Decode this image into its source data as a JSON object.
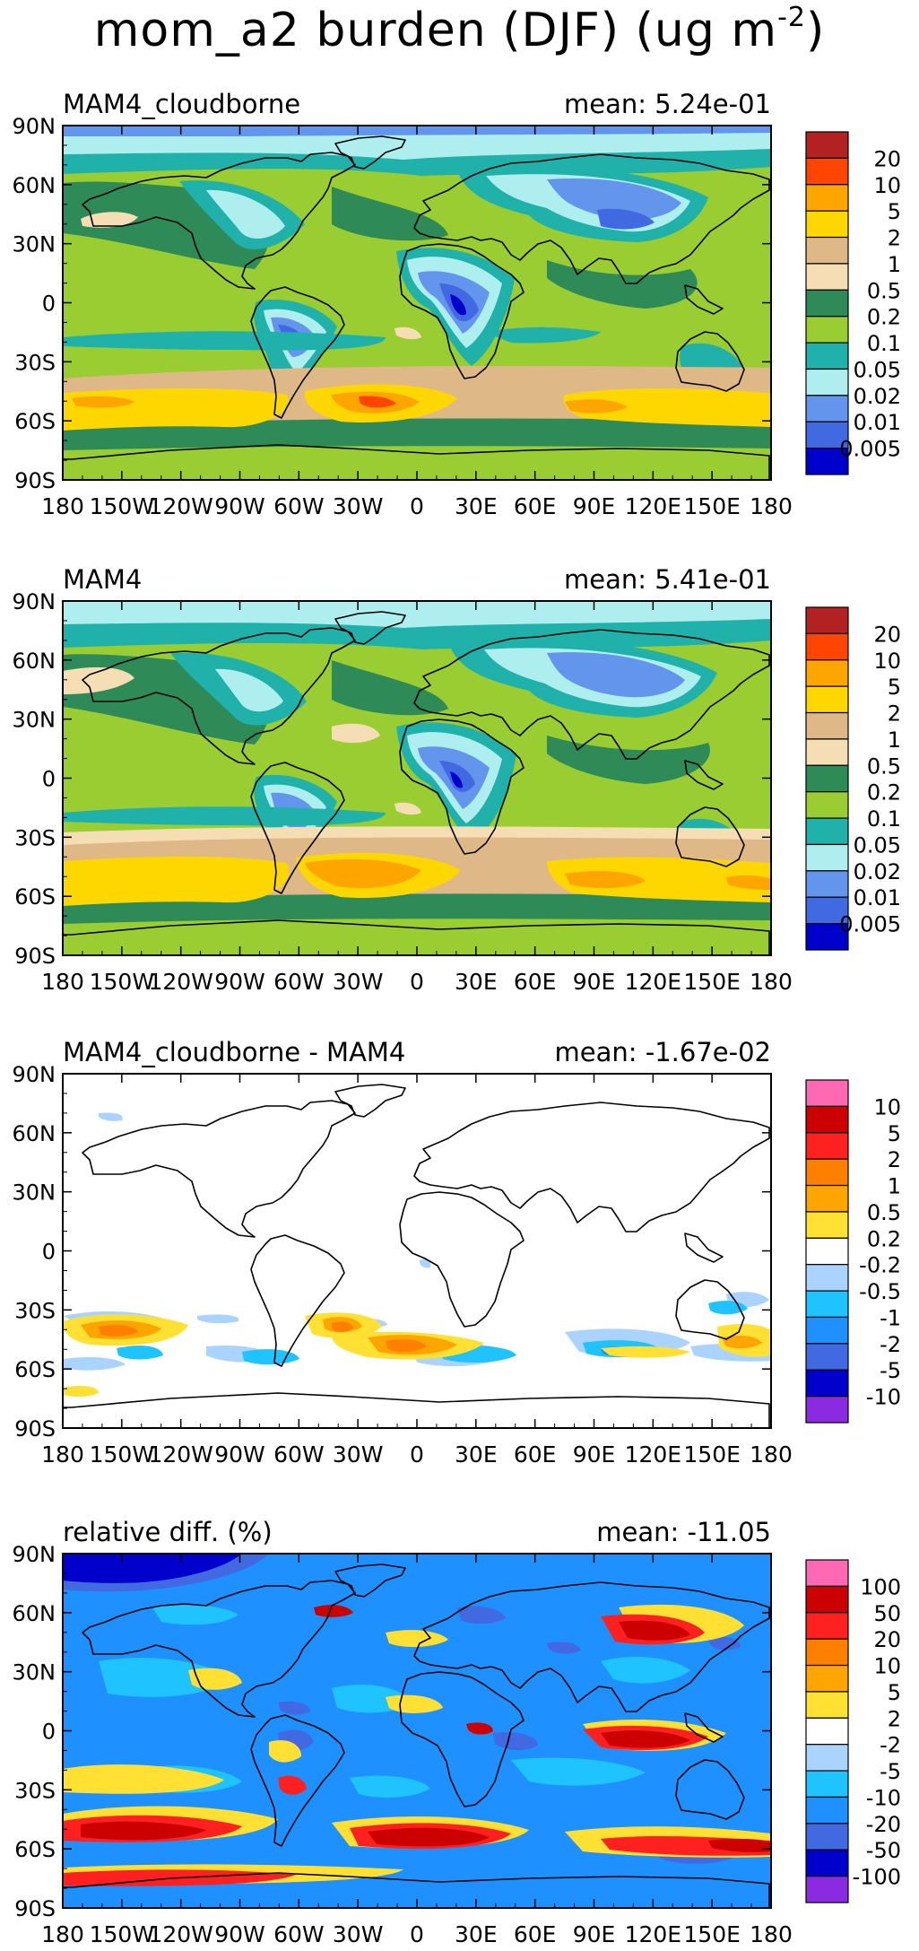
{
  "figure": {
    "title": "mom_a2 burden (DJF) (ug m",
    "title_exponent": "-2",
    "title_close": ")"
  },
  "chart_data": [
    {
      "type": "heatmap",
      "title": "MAM4_cloudborne",
      "mean_label": "mean: 5.24e-01",
      "x_ticks": [
        "180",
        "150W",
        "120W",
        "90W",
        "60W",
        "30W",
        "0",
        "30E",
        "60E",
        "90E",
        "120E",
        "150E",
        "180"
      ],
      "y_ticks": [
        "90N",
        "60N",
        "30N",
        "0",
        "30S",
        "60S",
        "90S"
      ],
      "colorbar": {
        "labels": [
          "20",
          "10",
          "5",
          "2",
          "1",
          "0.5",
          "0.2",
          "0.1",
          "0.05",
          "0.02",
          "0.01",
          "0.005"
        ],
        "colors": [
          "#b22222",
          "#ff4500",
          "#ffa500",
          "#ffd700",
          "#deb887",
          "#f5deb3",
          "#2e8b57",
          "#9acd32",
          "#20b2aa",
          "#afeeee",
          "#6495ed",
          "#4169e1",
          "#0000cd"
        ]
      }
    },
    {
      "type": "heatmap",
      "title": "MAM4",
      "mean_label": "mean: 5.41e-01",
      "x_ticks": [
        "180",
        "150W",
        "120W",
        "90W",
        "60W",
        "30W",
        "0",
        "30E",
        "60E",
        "90E",
        "120E",
        "150E",
        "180"
      ],
      "y_ticks": [
        "90N",
        "60N",
        "30N",
        "0",
        "30S",
        "60S",
        "90S"
      ],
      "colorbar": {
        "labels": [
          "20",
          "10",
          "5",
          "2",
          "1",
          "0.5",
          "0.2",
          "0.1",
          "0.05",
          "0.02",
          "0.01",
          "0.005"
        ],
        "colors": [
          "#b22222",
          "#ff4500",
          "#ffa500",
          "#ffd700",
          "#deb887",
          "#f5deb3",
          "#2e8b57",
          "#9acd32",
          "#20b2aa",
          "#afeeee",
          "#6495ed",
          "#4169e1",
          "#0000cd"
        ]
      }
    },
    {
      "type": "heatmap",
      "title": "MAM4_cloudborne - MAM4",
      "mean_label": "mean: -1.67e-02",
      "x_ticks": [
        "180",
        "150W",
        "120W",
        "90W",
        "60W",
        "30W",
        "0",
        "30E",
        "60E",
        "90E",
        "120E",
        "150E",
        "180"
      ],
      "y_ticks": [
        "90N",
        "60N",
        "30N",
        "0",
        "30S",
        "60S",
        "90S"
      ],
      "colorbar": {
        "labels": [
          "10",
          "5",
          "2",
          "1",
          "0.5",
          "0.2",
          "-0.2",
          "-0.5",
          "-1",
          "-2",
          "-5",
          "-10"
        ],
        "colors": [
          "#ff69b4",
          "#cc0000",
          "#ff2020",
          "#ff7f00",
          "#ffa500",
          "#ffe033",
          "#ffffff",
          "#aad4ff",
          "#1fc3ff",
          "#1e90ff",
          "#4169e1",
          "#0000cd",
          "#8a2be2"
        ]
      }
    },
    {
      "type": "heatmap",
      "title": "relative diff. (%)",
      "mean_label": "mean: -11.05",
      "x_ticks": [
        "180",
        "150W",
        "120W",
        "90W",
        "60W",
        "30W",
        "0",
        "30E",
        "60E",
        "90E",
        "120E",
        "150E",
        "180"
      ],
      "y_ticks": [
        "90N",
        "60N",
        "30N",
        "0",
        "30S",
        "60S",
        "90S"
      ],
      "colorbar": {
        "labels": [
          "100",
          "50",
          "20",
          "10",
          "5",
          "2",
          "-2",
          "-5",
          "-10",
          "-20",
          "-50",
          "-100"
        ],
        "colors": [
          "#ff69b4",
          "#cc0000",
          "#ff2020",
          "#ff7f00",
          "#ffa500",
          "#ffe033",
          "#ffffff",
          "#aad4ff",
          "#1fc3ff",
          "#1e90ff",
          "#4169e1",
          "#0000cd",
          "#8a2be2"
        ]
      }
    }
  ]
}
